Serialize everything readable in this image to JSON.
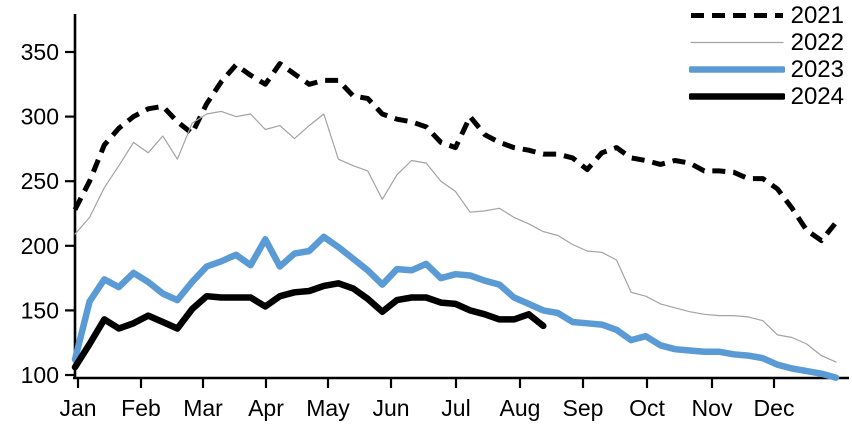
{
  "chart_data": {
    "type": "line",
    "title": "",
    "x_axis": {
      "categories": [
        "Jan",
        "Feb",
        "Mar",
        "Apr",
        "May",
        "Jun",
        "Jul",
        "Aug",
        "Sep",
        "Oct",
        "Nov",
        "Dec"
      ],
      "points_per_year": 52
    },
    "y_axis": {
      "ticks": [
        100,
        150,
        200,
        250,
        300,
        350
      ],
      "min": 100,
      "max": 365
    },
    "legend": {
      "position": "top-right",
      "entries": [
        "2021",
        "2022",
        "2023",
        "2024"
      ]
    },
    "series": [
      {
        "name": "2021",
        "style": "dashed",
        "color": "#000000",
        "width": 5,
        "values": [
          228,
          250,
          278,
          291,
          300,
          306,
          308,
          296,
          287,
          310,
          327,
          340,
          332,
          325,
          341,
          333,
          325,
          328,
          328,
          316,
          314,
          302,
          298,
          296,
          292,
          280,
          276,
          300,
          286,
          280,
          276,
          274,
          271,
          271,
          268,
          259,
          272,
          276,
          268,
          266,
          263,
          266,
          264,
          258,
          258,
          257,
          252,
          252,
          244,
          229,
          212,
          204,
          218
        ]
      },
      {
        "name": "2022",
        "style": "solid",
        "color": "#a3a3a3",
        "width": 1.2,
        "values": [
          209,
          222,
          245,
          262,
          280,
          272,
          285,
          267,
          295,
          302,
          304,
          300,
          302,
          290,
          293,
          283,
          293,
          302,
          267,
          262,
          258,
          236,
          255,
          266,
          264,
          250,
          242,
          226,
          227,
          229,
          222,
          217,
          211,
          208,
          201,
          196,
          195,
          189,
          164,
          161,
          155,
          152,
          149,
          147,
          146,
          146,
          145,
          142,
          131,
          129,
          124,
          115,
          110
        ]
      },
      {
        "name": "2023",
        "style": "solid",
        "color": "#5b9bd5",
        "width": 6.5,
        "values": [
          112,
          157,
          174,
          168,
          179,
          172,
          163,
          158,
          172,
          184,
          188,
          193,
          185,
          205,
          184,
          194,
          196,
          207,
          199,
          190,
          181,
          170,
          182,
          181,
          186,
          175,
          178,
          177,
          173,
          170,
          160,
          155,
          150,
          148,
          141,
          140,
          139,
          135,
          127,
          130,
          123,
          120,
          119,
          118,
          118,
          116,
          115,
          113,
          108,
          105,
          103,
          101,
          98
        ]
      },
      {
        "name": "2024",
        "style": "solid",
        "color": "#000000",
        "width": 6.5,
        "values": [
          106,
          124,
          143,
          136,
          140,
          146,
          141,
          136,
          151,
          161,
          160,
          160,
          160,
          153,
          161,
          164,
          165,
          169,
          171,
          167,
          159,
          149,
          158,
          160,
          160,
          156,
          155,
          150,
          147,
          143,
          143,
          147,
          138
        ]
      }
    ]
  }
}
